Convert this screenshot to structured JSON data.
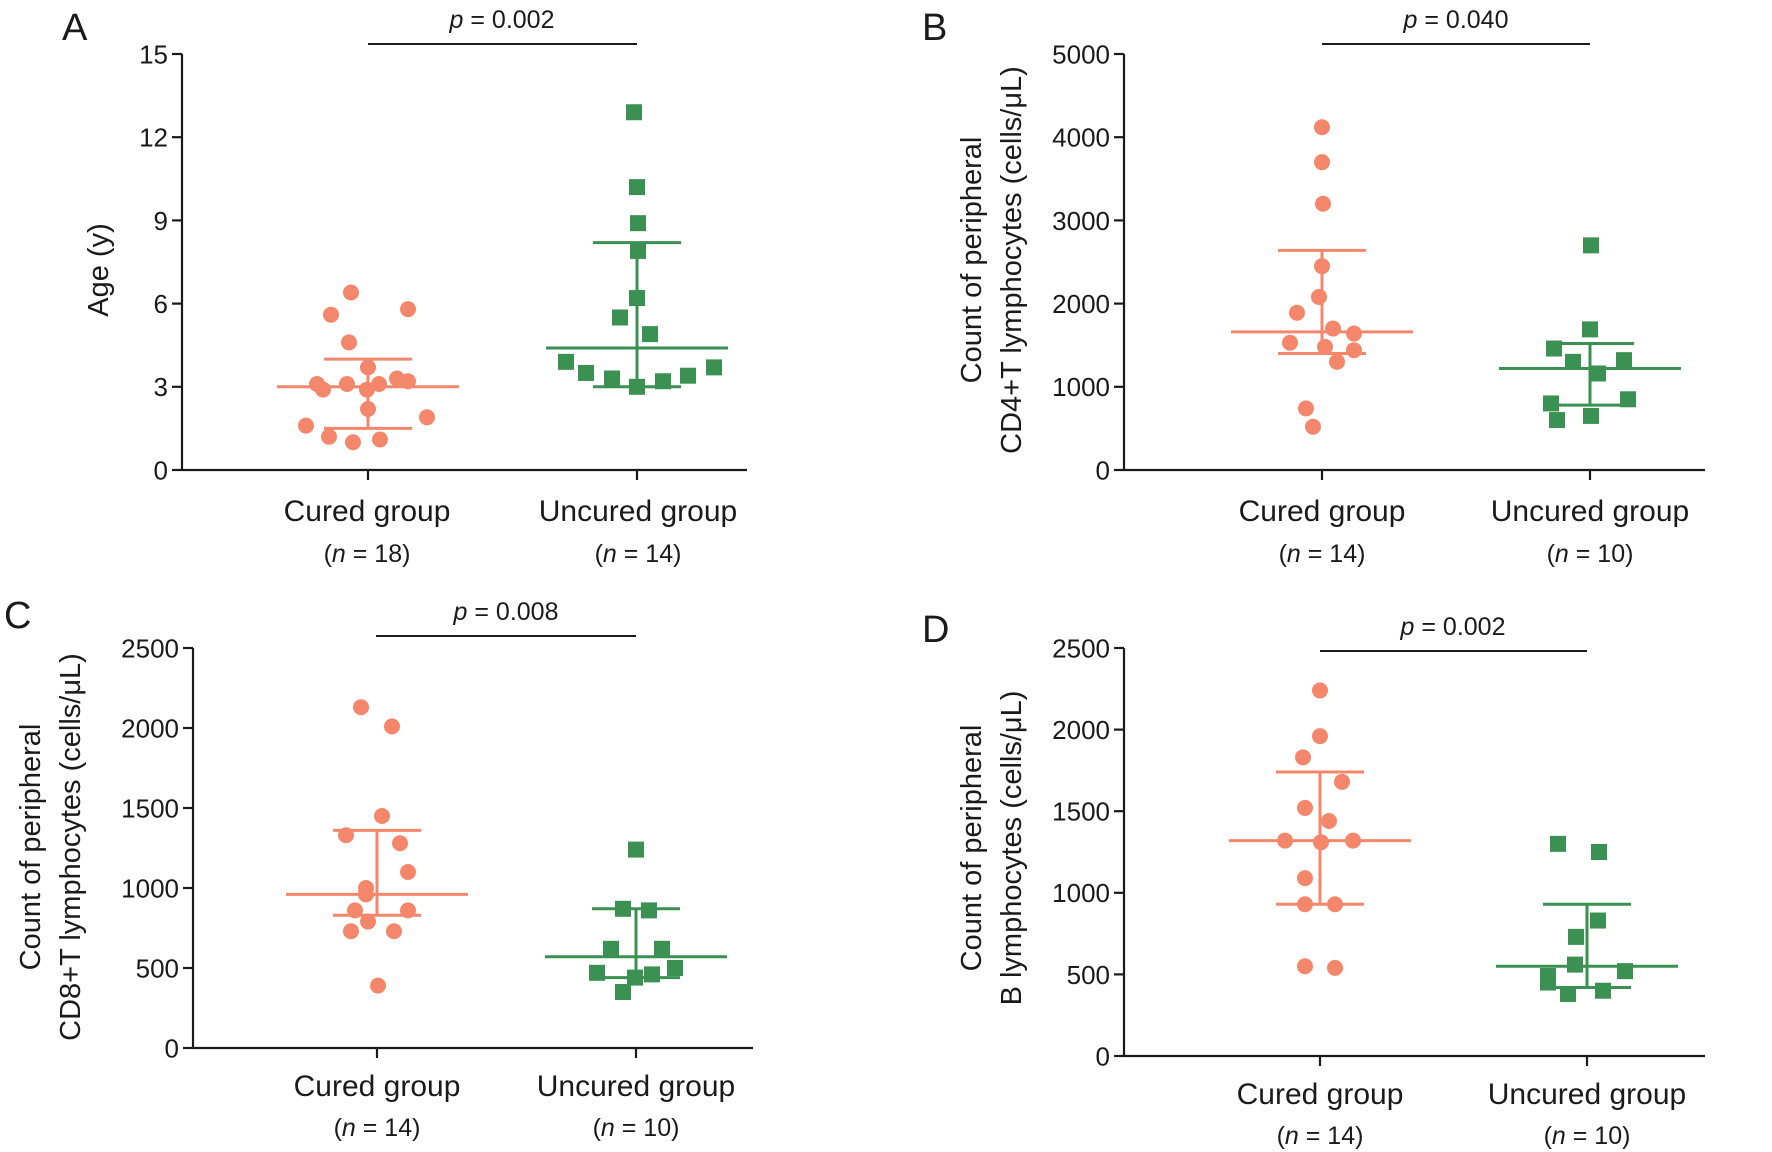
{
  "colors": {
    "cured": "#f4876b",
    "uncured": "#3a9151",
    "axis": "#1a1a1a"
  },
  "chart_data": [
    {
      "panel": "A",
      "type": "scatter",
      "ylabel_lines": [
        "Age (y)"
      ],
      "ylim": [
        0,
        15
      ],
      "yticks": [
        0,
        3,
        6,
        9,
        12,
        15
      ],
      "categories": [
        "Cured group",
        "Uncured group"
      ],
      "n_labels": [
        {
          "prefix": "(",
          "n": "n",
          "rest": " = 18)"
        },
        {
          "prefix": "(",
          "n": "n",
          "rest": " = 14)"
        }
      ],
      "p_text": {
        "p": "p",
        "rest": " = 0.002"
      },
      "series": [
        {
          "name": "Cured group",
          "marker": "circle",
          "center": 3.0,
          "lower": 1.5,
          "upper": 4.0,
          "points": [
            6.4,
            5.6,
            5.8,
            4.6,
            3.7,
            3.3,
            3.1,
            3.1,
            3.1,
            3.2,
            2.9,
            2.9,
            2.2,
            1.9,
            1.6,
            1.2,
            1.0,
            1.1
          ]
        },
        {
          "name": "Uncured group",
          "marker": "square",
          "center": 4.4,
          "lower": 3.0,
          "upper": 8.2,
          "points": [
            12.9,
            10.2,
            8.9,
            7.9,
            6.2,
            5.5,
            4.9,
            3.9,
            3.5,
            3.3,
            3.0,
            3.2,
            3.4,
            3.7
          ]
        }
      ]
    },
    {
      "panel": "B",
      "type": "scatter",
      "ylabel_lines": [
        "Count of peripheral",
        "CD4+T lymphocytes (cells/μL)"
      ],
      "ylim": [
        0,
        5000
      ],
      "yticks": [
        0,
        1000,
        2000,
        3000,
        4000,
        5000
      ],
      "categories": [
        "Cured group",
        "Uncured group"
      ],
      "n_labels": [
        {
          "prefix": "(",
          "n": "n",
          "rest": " = 14)"
        },
        {
          "prefix": "(",
          "n": "n",
          "rest": " = 10)"
        }
      ],
      "p_text": {
        "p": "p",
        "rest": " = 0.040"
      },
      "series": [
        {
          "name": "Cured group",
          "marker": "circle",
          "center": 1660,
          "lower": 1400,
          "upper": 2640,
          "points": [
            4120,
            3700,
            3200,
            2450,
            2080,
            1890,
            1700,
            1640,
            1530,
            1480,
            1440,
            1300,
            740,
            520
          ]
        },
        {
          "name": "Uncured group",
          "marker": "square",
          "center": 1220,
          "lower": 780,
          "upper": 1520,
          "points": [
            2700,
            1690,
            1460,
            1320,
            1300,
            1160,
            850,
            800,
            650,
            600
          ]
        }
      ]
    },
    {
      "panel": "C",
      "type": "scatter",
      "ylabel_lines": [
        "Count of peripheral",
        "CD8+T lymphocytes (cells/μL)"
      ],
      "ylim": [
        0,
        2500
      ],
      "yticks": [
        0,
        500,
        1000,
        1500,
        2000,
        2500
      ],
      "categories": [
        "Cured group",
        "Uncured group"
      ],
      "n_labels": [
        {
          "prefix": "(",
          "n": "n",
          "rest": " = 14)"
        },
        {
          "prefix": "(",
          "n": "n",
          "rest": " = 10)"
        }
      ],
      "p_text": {
        "p": "p",
        "rest": " = 0.008"
      },
      "series": [
        {
          "name": "Cured group",
          "marker": "circle",
          "center": 960,
          "lower": 830,
          "upper": 1360,
          "points": [
            2130,
            2010,
            1450,
            1280,
            1330,
            1100,
            1000,
            960,
            860,
            860,
            790,
            730,
            730,
            390
          ]
        },
        {
          "name": "Uncured group",
          "marker": "square",
          "center": 570,
          "lower": 440,
          "upper": 870,
          "points": [
            1240,
            870,
            860,
            620,
            620,
            500,
            470,
            440,
            460,
            350
          ]
        }
      ]
    },
    {
      "panel": "D",
      "type": "scatter",
      "ylabel_lines": [
        "Count of peripheral",
        "B lymphocytes (cells/μL)"
      ],
      "ylim": [
        0,
        2500
      ],
      "yticks": [
        0,
        500,
        1000,
        1500,
        2000,
        2500
      ],
      "categories": [
        "Cured group",
        "Uncured group"
      ],
      "n_labels": [
        {
          "prefix": "(",
          "n": "n",
          "rest": " = 14)"
        },
        {
          "prefix": "(",
          "n": "n",
          "rest": " = 10)"
        }
      ],
      "p_text": {
        "p": "p",
        "rest": " = 0.002"
      },
      "series": [
        {
          "name": "Cured group",
          "marker": "circle",
          "center": 1320,
          "lower": 930,
          "upper": 1740,
          "points": [
            2240,
            1960,
            1830,
            1680,
            1520,
            1440,
            1320,
            1320,
            1310,
            1090,
            930,
            930,
            550,
            540
          ]
        },
        {
          "name": "Uncured group",
          "marker": "square",
          "center": 550,
          "lower": 420,
          "upper": 930,
          "points": [
            1300,
            1250,
            830,
            730,
            560,
            520,
            490,
            450,
            400,
            380
          ]
        }
      ]
    }
  ]
}
